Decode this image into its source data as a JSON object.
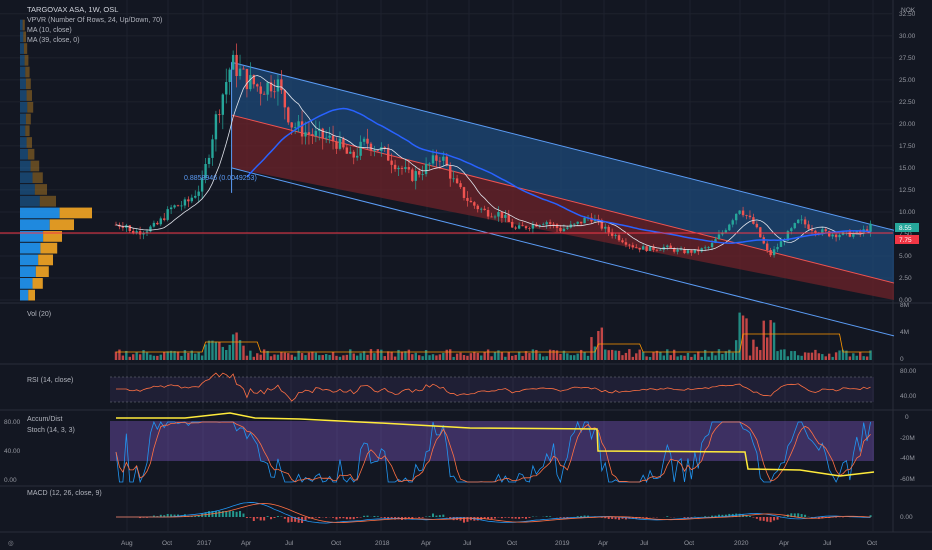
{
  "header": {
    "title": "TARGOVAX ASA, 1W, OSL",
    "currency": "NOK",
    "indicators": [
      "VPVR (Number Of Rows, 24, Up/Down, 70)",
      "MA (10, close)",
      "MA (39, close, 0)"
    ]
  },
  "fib_label": "0.8858946 (0.0049253)",
  "price_axis": {
    "ticks": [
      "32.50",
      "30.00",
      "27.50",
      "25.00",
      "22.50",
      "20.00",
      "17.50",
      "15.00",
      "12.50",
      "10.00",
      "7.50",
      "5.00",
      "2.50",
      "0.00"
    ],
    "last_price_label": "8.55",
    "line_price_label": "7.75"
  },
  "panes": {
    "volume": {
      "title": "Vol (20)",
      "ticks": [
        "8M",
        "4M",
        "0"
      ]
    },
    "rsi": {
      "title": "RSI (14, close)",
      "ticks": [
        "80.00",
        "40.00"
      ]
    },
    "accum": {
      "title": "Accum/Dist",
      "stoch_title": "Stoch (14, 3, 3)",
      "left_ticks": [
        "80.00",
        "40.00",
        "0.00"
      ],
      "right_ticks": [
        "0",
        "-20M",
        "-40M",
        "-60M"
      ]
    },
    "macd": {
      "title": "MACD (12, 26, close, 9)",
      "ticks": [
        "0.00"
      ]
    }
  },
  "time_axis": [
    "Aug",
    "Oct",
    "2017",
    "Apr",
    "Jul",
    "Oct",
    "2018",
    "Apr",
    "Jul",
    "Oct",
    "2019",
    "Apr",
    "Jul",
    "Oct",
    "2020",
    "Apr",
    "Jul",
    "Oct"
  ],
  "colors": {
    "bg": "#131722",
    "up": "#26a69a",
    "down": "#ef5350",
    "ma10": "#e0e3eb",
    "ma39": "#2962ff",
    "channel_upper": "#2a5d8f",
    "channel_lower": "#8b2c33",
    "rsi_line": "#ff7043",
    "stoch_k": "#2196f3",
    "stoch_d": "#ff7043",
    "accum": "#ffeb3b",
    "hline": "#f23645"
  },
  "chart_data": {
    "type": "candlestick",
    "title": "TARGOVAX ASA, 1W, OSL",
    "ylim": [
      0,
      34
    ],
    "weekly_close_path": [
      [
        "2016-08",
        7.7
      ],
      [
        "2016-09",
        7.8
      ],
      [
        "2016-10",
        8.5
      ],
      [
        "2016-11",
        10.5
      ],
      [
        "2016-12",
        11
      ],
      [
        "2017-01",
        13
      ],
      [
        "2017-02",
        21
      ],
      [
        "2017-03",
        27
      ],
      [
        "2017-04",
        25
      ],
      [
        "2017-05",
        24
      ],
      [
        "2017-06",
        25
      ],
      [
        "2017-07",
        20
      ],
      [
        "2017-08",
        19
      ],
      [
        "2017-09",
        18.5
      ],
      [
        "2017-10",
        18
      ],
      [
        "2017-11",
        16
      ],
      [
        "2017-12",
        18
      ],
      [
        "2018-01",
        17
      ],
      [
        "2018-02",
        15.5
      ],
      [
        "2018-03",
        14
      ],
      [
        "2018-04",
        15
      ],
      [
        "2018-05",
        16.5
      ],
      [
        "2018-06",
        13
      ],
      [
        "2018-07",
        11
      ],
      [
        "2018-08",
        10
      ],
      [
        "2018-09",
        9.8
      ],
      [
        "2018-10",
        8
      ],
      [
        "2018-11",
        8.5
      ],
      [
        "2018-12",
        9
      ],
      [
        "2019-01",
        8
      ],
      [
        "2019-02",
        8.5
      ],
      [
        "2019-03",
        9.5
      ],
      [
        "2019-04",
        8
      ],
      [
        "2019-05",
        7
      ],
      [
        "2019-06",
        6
      ],
      [
        "2019-07",
        5.8
      ],
      [
        "2019-08",
        6
      ],
      [
        "2019-09",
        5.5
      ],
      [
        "2019-10",
        5.5
      ],
      [
        "2019-11",
        6
      ],
      [
        "2019-12",
        8
      ],
      [
        "2020-01",
        10.5
      ],
      [
        "2020-02",
        8.5
      ],
      [
        "2020-03",
        5
      ],
      [
        "2020-04",
        7
      ],
      [
        "2020-05",
        9
      ],
      [
        "2020-06",
        8
      ],
      [
        "2020-07",
        7.5
      ],
      [
        "2020-08",
        7.5
      ],
      [
        "2020-09",
        7.5
      ],
      [
        "2020-10",
        8.55
      ]
    ],
    "ma10": "smoothed close",
    "ma39": "smoothed close",
    "last_price": 8.55,
    "horizontal_line": 7.75,
    "channel": {
      "upper_start": [
        "2017-03",
        27
      ],
      "upper_end": [
        "2020-10",
        8.5
      ],
      "mid_start": [
        "2017-03",
        21
      ],
      "mid_end": [
        "2020-10",
        2.5
      ],
      "lower_start": [
        "2017-03",
        15
      ],
      "lower_end": [
        "2020-10",
        -3.5
      ]
    }
  }
}
